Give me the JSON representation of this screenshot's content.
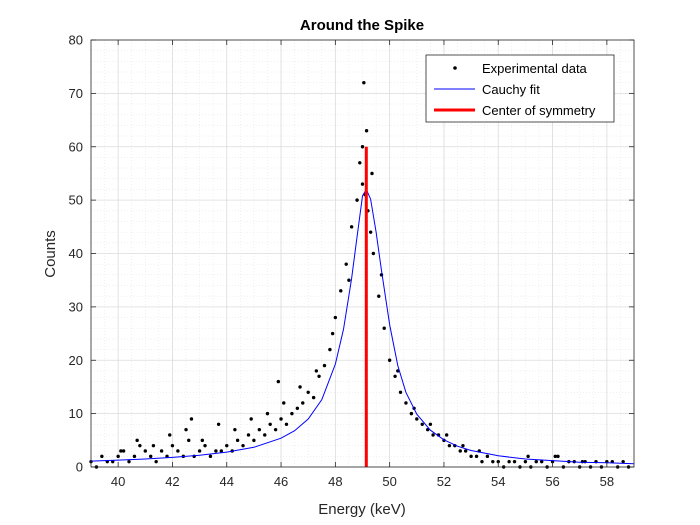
{
  "chart_data": {
    "type": "scatter",
    "title": "Around the Spike",
    "xlabel": "Energy (keV)",
    "ylabel": "Counts",
    "xlim": [
      39,
      59
    ],
    "ylim": [
      0,
      80
    ],
    "xticks": [
      40,
      42,
      44,
      46,
      48,
      50,
      52,
      54,
      56,
      58
    ],
    "yticks": [
      0,
      10,
      20,
      30,
      40,
      50,
      60,
      70,
      80
    ],
    "grid": true,
    "minor_grid": true,
    "legend_position": "top-right",
    "series": [
      {
        "name": "Experimental data",
        "kind": "points",
        "color": "#000000",
        "x": [
          39.0,
          39.2,
          39.4,
          39.6,
          39.8,
          40.0,
          40.2,
          40.4,
          40.6,
          40.8,
          41.0,
          41.2,
          41.4,
          41.6,
          41.8,
          42.0,
          42.2,
          42.4,
          42.6,
          42.8,
          43.0,
          43.2,
          43.4,
          43.6,
          43.8,
          44.0,
          44.2,
          44.4,
          44.6,
          44.8,
          45.0,
          45.2,
          45.4,
          45.6,
          45.8,
          46.0,
          46.2,
          46.4,
          46.6,
          46.8,
          47.0,
          47.2,
          47.4,
          47.6,
          47.8,
          48.0,
          48.2,
          48.4,
          48.6,
          48.8,
          49.0,
          49.1,
          49.2,
          49.4,
          49.6,
          49.8,
          50.0,
          50.2,
          50.4,
          50.6,
          50.8,
          51.0,
          51.2,
          51.4,
          51.6,
          51.8,
          52.0,
          52.2,
          52.4,
          52.6,
          52.8,
          53.0,
          53.2,
          53.4,
          53.6,
          53.8,
          54.0,
          54.2,
          54.4,
          54.6,
          54.8,
          55.0,
          55.2,
          55.4,
          55.6,
          55.8,
          56.0,
          56.2,
          56.4,
          56.6,
          56.8,
          57.0,
          57.2,
          57.4,
          57.6,
          57.8,
          58.0,
          58.2,
          58.4,
          58.6,
          58.8,
          40.1,
          40.7,
          41.3,
          41.9,
          42.5,
          43.1,
          43.7,
          44.3,
          44.9,
          45.5,
          46.1,
          46.7,
          47.3,
          47.9,
          48.5,
          49.0,
          49.3,
          49.7,
          50.3,
          50.9,
          51.5,
          52.1,
          52.7,
          53.3,
          55.1,
          56.1,
          57.1,
          42.7,
          45.9,
          49.05,
          49.15,
          48.9,
          49.35
        ],
        "y": [
          1,
          0,
          2,
          1,
          1,
          2,
          3,
          1,
          2,
          4,
          3,
          2,
          1,
          3,
          2,
          4,
          3,
          2,
          5,
          2,
          3,
          4,
          2,
          3,
          3,
          4,
          3,
          5,
          4,
          6,
          5,
          7,
          6,
          8,
          7,
          9,
          8,
          10,
          11,
          12,
          14,
          13,
          17,
          19,
          22,
          28,
          33,
          38,
          45,
          50,
          53,
          51,
          48,
          40,
          32,
          26,
          20,
          17,
          14,
          12,
          10,
          9,
          8,
          7,
          6,
          6,
          5,
          4,
          4,
          3,
          3,
          2,
          2,
          1,
          2,
          1,
          1,
          0,
          1,
          1,
          0,
          1,
          0,
          1,
          1,
          0,
          1,
          2,
          0,
          1,
          1,
          0,
          1,
          0,
          1,
          0,
          1,
          1,
          0,
          1,
          0,
          3,
          5,
          4,
          6,
          7,
          5,
          8,
          7,
          9,
          10,
          12,
          15,
          18,
          25,
          35,
          60,
          44,
          36,
          18,
          11,
          8,
          6,
          4,
          3,
          2,
          2,
          1,
          9,
          16,
          72,
          63,
          57,
          55
        ]
      },
      {
        "name": "Cauchy fit",
        "kind": "line",
        "color": "#0000ff",
        "x": [
          39,
          40,
          41,
          42,
          43,
          44,
          45,
          46,
          46.5,
          47,
          47.5,
          48,
          48.3,
          48.6,
          48.8,
          49.0,
          49.14,
          49.3,
          49.5,
          49.7,
          50.0,
          50.3,
          50.6,
          51,
          51.5,
          52,
          52.5,
          53,
          54,
          55,
          56,
          57,
          58,
          59
        ],
        "y": [
          1.1,
          1.3,
          1.5,
          1.8,
          2.2,
          2.8,
          3.7,
          5.4,
          6.8,
          9.0,
          12.6,
          19.3,
          25.8,
          35.3,
          43.2,
          50.8,
          52.0,
          50.2,
          44.0,
          36.8,
          26.6,
          19.0,
          14.0,
          9.9,
          6.9,
          5.1,
          3.9,
          3.1,
          2.1,
          1.5,
          1.2,
          0.9,
          0.8,
          0.6
        ]
      },
      {
        "name": "Center of symmetry",
        "kind": "vline",
        "color": "#ff0000",
        "x": [
          49.14,
          49.14
        ],
        "y": [
          0,
          60
        ]
      }
    ]
  }
}
